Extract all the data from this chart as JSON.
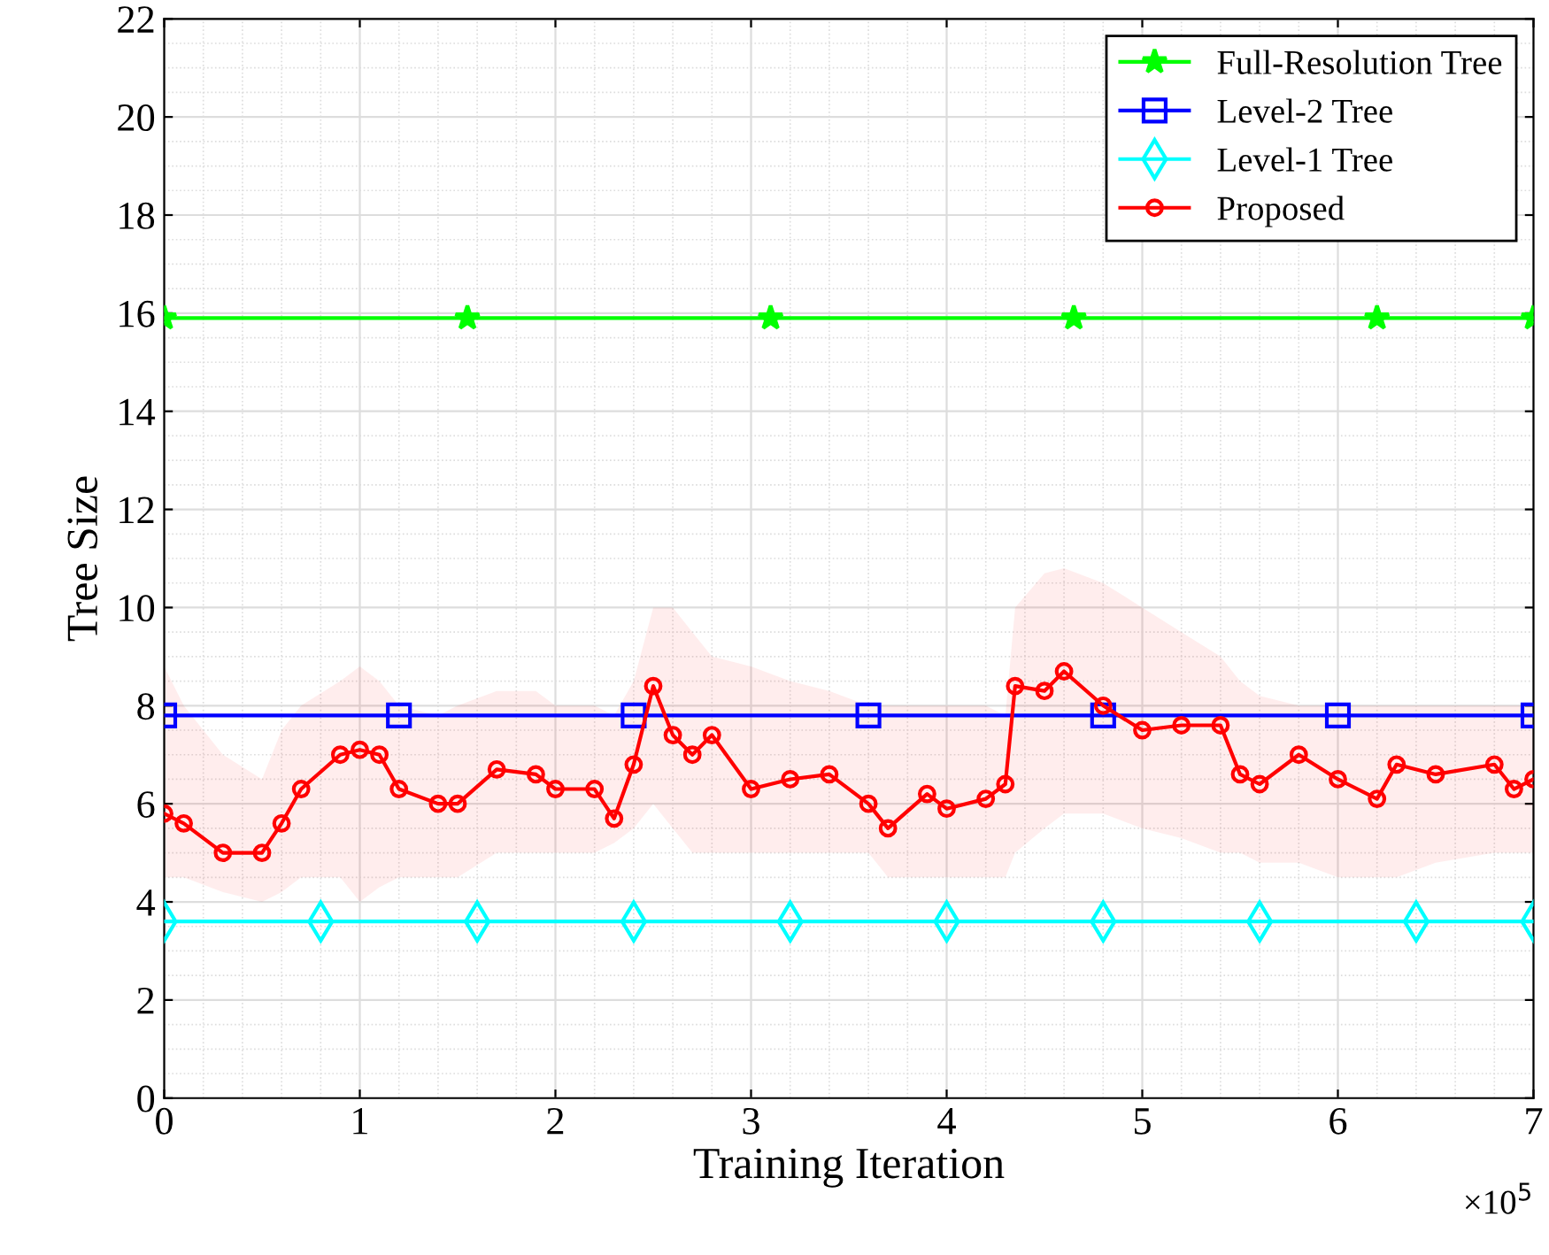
{
  "chart_data": {
    "type": "line",
    "xlabel": "Training Iteration",
    "ylabel": "Tree Size",
    "xlim": [
      0,
      7
    ],
    "xticks": [
      0,
      1,
      2,
      3,
      4,
      5,
      6,
      7
    ],
    "ylim": [
      0,
      22
    ],
    "yticks": [
      0,
      2,
      4,
      6,
      8,
      10,
      12,
      14,
      16,
      18,
      20,
      22
    ],
    "grid": true,
    "legend": "top right",
    "line_style": "solid",
    "annotations": [
      "×10$^{5}$"
    ],
    "series": [
      {
        "name": "Full-Resolution Tree",
        "color": "#00ff00",
        "marker": "star",
        "x": [
          0,
          1.55,
          3.1,
          4.65,
          6.2,
          7
        ],
        "values": [
          15.9,
          15.9,
          15.9,
          15.9,
          15.9,
          15.9
        ]
      },
      {
        "name": "Level-2 Tree",
        "color": "#0000ff",
        "marker": "square",
        "x": [
          0,
          1.2,
          2.4,
          3.6,
          4.8,
          6.0,
          7
        ],
        "values": [
          7.8,
          7.8,
          7.8,
          7.8,
          7.8,
          7.8,
          7.8
        ]
      },
      {
        "name": "Level-1 Tree",
        "color": "#00ffff",
        "marker": "diamond",
        "x": [
          0,
          0.8,
          1.6,
          2.4,
          3.2,
          4.0,
          4.8,
          5.6,
          6.4,
          7
        ],
        "values": [
          3.6,
          3.6,
          3.6,
          3.6,
          3.6,
          3.6,
          3.6,
          3.6,
          3.6,
          3.6
        ]
      },
      {
        "name": "Proposed",
        "color": "#ff0000",
        "marker": "circle",
        "x": [
          0,
          0.1,
          0.3,
          0.5,
          0.6,
          0.7,
          0.9,
          1.0,
          1.1,
          1.2,
          1.4,
          1.5,
          1.7,
          1.9,
          2.0,
          2.2,
          2.3,
          2.4,
          2.5,
          2.6,
          2.7,
          2.8,
          3.0,
          3.2,
          3.4,
          3.6,
          3.7,
          3.9,
          4.0,
          4.2,
          4.3,
          4.35,
          4.5,
          4.6,
          4.8,
          5.0,
          5.2,
          5.4,
          5.5,
          5.6,
          5.8,
          6.0,
          6.2,
          6.3,
          6.5,
          6.8,
          6.9,
          7.0
        ],
        "values": [
          5.8,
          5.6,
          5.0,
          5.0,
          5.6,
          6.3,
          7.0,
          7.1,
          7.0,
          6.3,
          6.0,
          6.0,
          6.7,
          6.6,
          6.3,
          6.3,
          5.7,
          6.8,
          8.4,
          7.4,
          7.0,
          7.4,
          6.3,
          6.5,
          6.6,
          6.0,
          5.5,
          6.2,
          5.9,
          6.1,
          6.4,
          8.4,
          8.3,
          8.7,
          8.0,
          7.5,
          7.6,
          7.6,
          6.6,
          6.4,
          7.0,
          6.5,
          6.1,
          6.8,
          6.6,
          6.8,
          6.3,
          6.5
        ],
        "lower": [
          4.5,
          4.5,
          4.2,
          4.0,
          4.2,
          4.5,
          4.5,
          4.0,
          4.3,
          4.5,
          4.5,
          4.5,
          5.0,
          5.0,
          5.0,
          5.0,
          5.2,
          5.5,
          6.0,
          5.5,
          5.0,
          5.0,
          5.0,
          5.0,
          5.0,
          5.0,
          4.5,
          4.5,
          4.5,
          4.5,
          4.5,
          5.0,
          5.5,
          5.8,
          5.8,
          5.5,
          5.3,
          5.0,
          5.0,
          4.8,
          4.8,
          4.5,
          4.5,
          4.5,
          4.8,
          5.0,
          5.0,
          5.0
        ],
        "upper": [
          8.8,
          8.0,
          7.0,
          6.5,
          7.5,
          8.0,
          8.5,
          8.8,
          8.5,
          8.0,
          7.8,
          8.0,
          8.3,
          8.3,
          8.0,
          8.0,
          7.8,
          8.5,
          10.0,
          10.0,
          9.5,
          9.0,
          8.8,
          8.5,
          8.3,
          8.0,
          8.0,
          8.0,
          8.0,
          8.0,
          7.8,
          10.0,
          10.7,
          10.8,
          10.5,
          10.0,
          9.5,
          9.0,
          8.5,
          8.2,
          8.0,
          8.0,
          8.0,
          8.0,
          8.0,
          8.0,
          8.0,
          8.0
        ]
      }
    ]
  }
}
